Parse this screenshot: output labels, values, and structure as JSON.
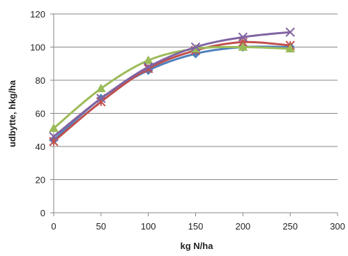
{
  "chart_data": {
    "type": "line",
    "title": "",
    "xlabel": "kg N/ha",
    "ylabel": "udbytte, hkg/ha",
    "xlim": [
      0,
      300
    ],
    "ylim": [
      0,
      120
    ],
    "xticks": [
      0,
      50,
      100,
      150,
      200,
      250,
      300
    ],
    "yticks": [
      0,
      20,
      40,
      60,
      80,
      100,
      120
    ],
    "grid": "horizontal",
    "legend": "none",
    "smooth": true,
    "series": [
      {
        "color": "#4f81bd",
        "marker": "diamond",
        "x": [
          0,
          50,
          100,
          150,
          200,
          250
        ],
        "y": [
          44,
          69,
          86,
          96,
          100,
          100
        ]
      },
      {
        "color": "#c0504d",
        "marker": "cross",
        "x": [
          0,
          50,
          100,
          150,
          200,
          250
        ],
        "y": [
          43,
          67,
          87,
          98,
          103,
          101
        ]
      },
      {
        "color": "#9bbb59",
        "marker": "triangle",
        "x": [
          0,
          50,
          100,
          150,
          200,
          250
        ],
        "y": [
          51,
          75,
          92,
          99,
          100,
          99
        ]
      },
      {
        "color": "#8064a2",
        "marker": "x",
        "x": [
          0,
          50,
          100,
          150,
          200,
          250
        ],
        "y": [
          46,
          69,
          88,
          100,
          106,
          109
        ]
      }
    ]
  }
}
